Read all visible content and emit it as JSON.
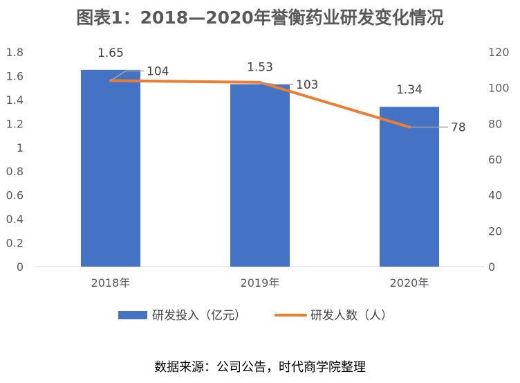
{
  "title": "图表1：2018—2020年誉衡药业研发变化情况",
  "source": "数据来源：公司公告，时代商学院整理",
  "chart_data": {
    "type": "bar",
    "categories": [
      "2018年",
      "2019年",
      "2020年"
    ],
    "series": [
      {
        "name": "研发投入（亿元）",
        "type": "bar",
        "axis": "left",
        "color": "#4472C4",
        "values": [
          1.65,
          1.53,
          1.34
        ],
        "labels": [
          "1.65",
          "1.53",
          "1.34"
        ]
      },
      {
        "name": "研发人数（人）",
        "type": "line",
        "axis": "right",
        "color": "#ED7D31",
        "values": [
          104,
          103,
          78
        ],
        "labels": [
          "104",
          "103",
          "78"
        ]
      }
    ],
    "y_left": {
      "min": 0,
      "max": 1.8,
      "ticks": [
        "0",
        "0.2",
        "0.4",
        "0.6",
        "0.8",
        "1",
        "1.2",
        "1.4",
        "1.6",
        "1.8"
      ]
    },
    "y_right": {
      "min": 0,
      "max": 120,
      "ticks": [
        "0",
        "20",
        "40",
        "60",
        "80",
        "100",
        "120"
      ]
    },
    "grid": false,
    "legend_position": "bottom"
  }
}
